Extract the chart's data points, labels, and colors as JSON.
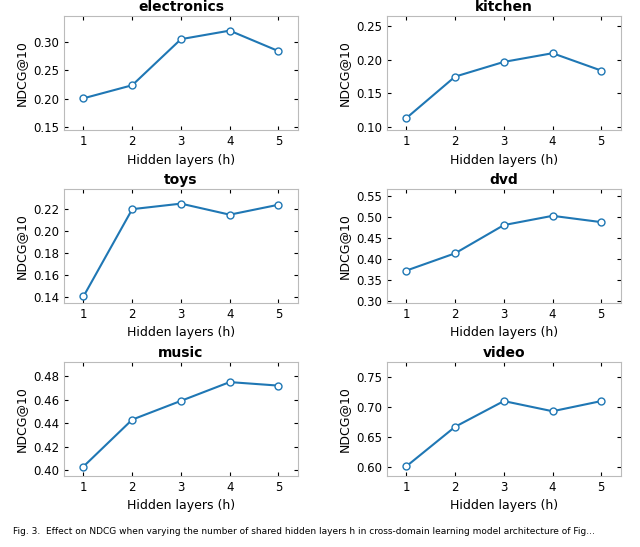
{
  "x": [
    1,
    2,
    3,
    4,
    5
  ],
  "subplots": [
    {
      "title": "electronics",
      "ylabel": "NDCG@10",
      "xlabel": "Hidden layers (h)",
      "y": [
        0.201,
        0.224,
        0.305,
        0.32,
        0.284
      ],
      "ylim": [
        0.145,
        0.345
      ],
      "yticks": [
        0.15,
        0.2,
        0.25,
        0.3
      ]
    },
    {
      "title": "kitchen",
      "ylabel": "NDCG@10",
      "xlabel": "Hidden layers (h)",
      "y": [
        0.113,
        0.175,
        0.197,
        0.21,
        0.184
      ],
      "ylim": [
        0.095,
        0.265
      ],
      "yticks": [
        0.1,
        0.15,
        0.2,
        0.25
      ]
    },
    {
      "title": "toys",
      "ylabel": "NDCG@10",
      "xlabel": "Hidden layers (h)",
      "y": [
        0.141,
        0.22,
        0.225,
        0.215,
        0.224
      ],
      "ylim": [
        0.135,
        0.238
      ],
      "yticks": [
        0.14,
        0.16,
        0.18,
        0.2,
        0.22
      ]
    },
    {
      "title": "dvd",
      "ylabel": "NDCG@10",
      "xlabel": "Hidden layers (h)",
      "y": [
        0.372,
        0.413,
        0.48,
        0.502,
        0.487
      ],
      "ylim": [
        0.295,
        0.565
      ],
      "yticks": [
        0.3,
        0.35,
        0.4,
        0.45,
        0.5,
        0.55
      ]
    },
    {
      "title": "music",
      "ylabel": "NDCG@10",
      "xlabel": "Hidden layers (h)",
      "y": [
        0.403,
        0.443,
        0.459,
        0.475,
        0.472
      ],
      "ylim": [
        0.395,
        0.492
      ],
      "yticks": [
        0.4,
        0.42,
        0.44,
        0.46,
        0.48
      ]
    },
    {
      "title": "video",
      "ylabel": "NDCG@10",
      "xlabel": "Hidden layers (h)",
      "y": [
        0.601,
        0.667,
        0.71,
        0.693,
        0.71
      ],
      "ylim": [
        0.585,
        0.775
      ],
      "yticks": [
        0.6,
        0.65,
        0.7,
        0.75
      ]
    }
  ],
  "line_color": "#1f77b4",
  "marker": "o",
  "marker_facecolor": "white",
  "marker_edgecolor": "#1f77b4",
  "marker_size": 5,
  "line_width": 1.5,
  "title_fontsize": 10,
  "label_fontsize": 9,
  "tick_fontsize": 8.5,
  "fig_width": 6.4,
  "fig_height": 5.47,
  "caption": "Fig. 3. Effect on NDCG when varying the number of shared hidden layers h in cross-domain learning model architecture of Fig..."
}
